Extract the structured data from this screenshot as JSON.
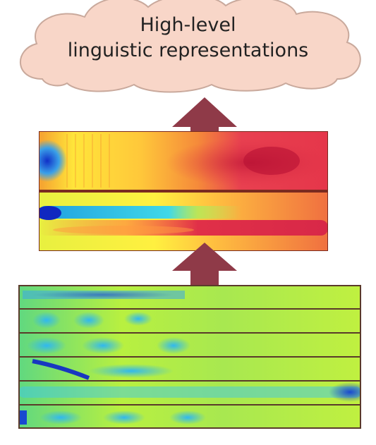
{
  "cloud": {
    "line1": "High-level",
    "line2": "linguistic representations",
    "fill": "#f8d6c8",
    "stroke": "#c9a99c"
  },
  "arrow": {
    "color": "#8f3a48"
  },
  "top_stack": {
    "panels": [
      {
        "name": "top-heatmap-panel-1",
        "tone": "red"
      },
      {
        "name": "top-heatmap-panel-2",
        "tone": "mixed"
      }
    ]
  },
  "bottom_stack": {
    "panel_count": 6,
    "tone": "green-cyan"
  }
}
